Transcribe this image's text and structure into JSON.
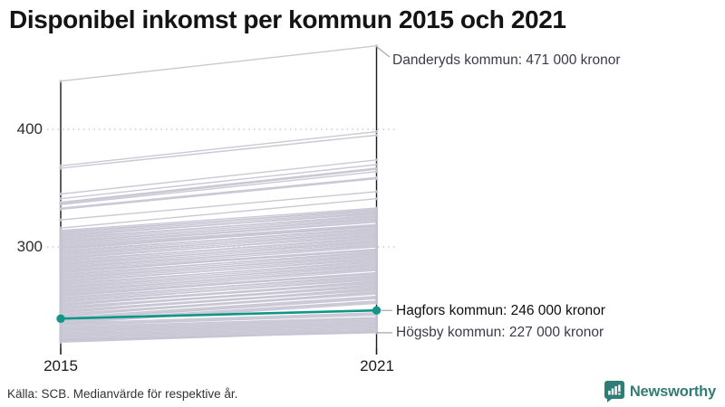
{
  "header": {
    "title": "Disponibel inkomst per kommun 2015 och 2021"
  },
  "footer": {
    "source": "Källa: SCB. Medianvärde för respektive år.",
    "brand": "Newsworthy",
    "brand_icon": "bar-chart-speech-bubble-icon"
  },
  "colors": {
    "accent_teal": "#0f9688",
    "line_gray": "#c6c3d2",
    "axis_black": "#1a1a1a",
    "grid_gray": "#c8c8d2",
    "connector_gray": "#9a98a8",
    "annotation_text": "#3a3a4c",
    "brand_teal": "#2e7e77"
  },
  "chart_data": {
    "type": "line",
    "subtype": "slope-chart",
    "title": "Disponibel inkomst per kommun 2015 och 2021",
    "x_categories": [
      "2015",
      "2021"
    ],
    "y_ticks": [
      400,
      300
    ],
    "ylim": [
      214,
      480
    ],
    "grid": "dotted-horizontal",
    "legend": "none",
    "annotations": [
      {
        "label": "Danderyds kommun: 471 000 kronor",
        "year": "2021",
        "value": 471
      },
      {
        "label": "Hagfors kommun: 246 000 kronor",
        "year": "2021",
        "value": 246
      },
      {
        "label": "Högsby kommun: 227 000 kronor",
        "year": "2021",
        "value": 227
      }
    ],
    "highlight": {
      "name": "Hagfors kommun",
      "values": [
        239,
        246
      ],
      "color": "#0f9688"
    },
    "lines": [
      [
        441,
        471
      ],
      [
        369,
        398
      ],
      [
        367,
        395
      ],
      [
        345,
        374
      ],
      [
        341,
        370
      ],
      [
        338,
        367
      ],
      [
        337,
        366
      ],
      [
        336,
        364
      ],
      [
        333,
        359
      ],
      [
        332,
        358
      ],
      [
        323,
        347
      ],
      [
        316,
        341
      ],
      [
        314,
        333
      ],
      [
        313,
        331
      ],
      [
        312,
        332
      ],
      [
        311,
        330
      ],
      [
        310,
        328
      ],
      [
        309,
        329
      ],
      [
        308,
        326
      ],
      [
        307,
        327
      ],
      [
        306,
        325
      ],
      [
        305,
        323
      ],
      [
        304,
        324
      ],
      [
        303,
        322
      ],
      [
        302,
        321
      ],
      [
        301,
        319
      ],
      [
        300,
        318
      ],
      [
        299,
        317
      ],
      [
        298,
        318
      ],
      [
        297,
        315
      ],
      [
        296,
        316
      ],
      [
        295,
        314
      ],
      [
        294,
        312
      ],
      [
        293,
        313
      ],
      [
        292,
        311
      ],
      [
        291,
        309
      ],
      [
        290,
        310
      ],
      [
        289,
        307
      ],
      [
        288,
        308
      ],
      [
        287,
        306
      ],
      [
        286,
        304
      ],
      [
        285,
        305
      ],
      [
        284,
        303
      ],
      [
        283,
        301
      ],
      [
        282,
        302
      ],
      [
        281,
        300
      ],
      [
        280,
        298
      ],
      [
        279,
        297
      ],
      [
        278,
        298
      ],
      [
        277,
        295
      ],
      [
        276,
        296
      ],
      [
        275,
        294
      ],
      [
        274,
        292
      ],
      [
        273,
        293
      ],
      [
        272,
        291
      ],
      [
        271,
        289
      ],
      [
        270,
        290
      ],
      [
        269,
        287
      ],
      [
        268,
        288
      ],
      [
        267,
        286
      ],
      [
        266,
        284
      ],
      [
        265,
        285
      ],
      [
        264,
        283
      ],
      [
        263,
        281
      ],
      [
        262,
        282
      ],
      [
        261,
        280
      ],
      [
        260,
        278
      ],
      [
        259,
        277
      ],
      [
        258,
        278
      ],
      [
        257,
        275
      ],
      [
        256,
        276
      ],
      [
        255,
        274
      ],
      [
        254,
        272
      ],
      [
        253,
        273
      ],
      [
        252,
        270
      ],
      [
        251,
        269
      ],
      [
        250,
        271
      ],
      [
        249,
        267
      ],
      [
        248,
        266
      ],
      [
        247,
        268
      ],
      [
        246,
        264
      ],
      [
        245,
        263
      ],
      [
        244,
        265
      ],
      [
        243,
        261
      ],
      [
        242,
        260
      ],
      [
        241,
        262
      ],
      [
        240,
        258
      ],
      [
        239,
        257
      ],
      [
        238,
        256
      ],
      [
        237,
        254
      ],
      [
        236,
        253
      ],
      [
        235,
        252
      ],
      [
        235,
        244
      ],
      [
        234,
        243
      ],
      [
        233,
        242
      ],
      [
        232,
        240
      ],
      [
        231,
        239
      ],
      [
        230,
        238
      ],
      [
        229,
        237
      ],
      [
        228,
        236
      ],
      [
        227,
        235
      ],
      [
        226,
        234
      ],
      [
        225,
        233
      ],
      [
        224,
        232
      ],
      [
        223,
        231
      ],
      [
        222,
        230
      ],
      [
        221,
        229
      ],
      [
        221,
        227
      ],
      [
        220,
        228
      ],
      [
        219,
        228
      ]
    ]
  }
}
